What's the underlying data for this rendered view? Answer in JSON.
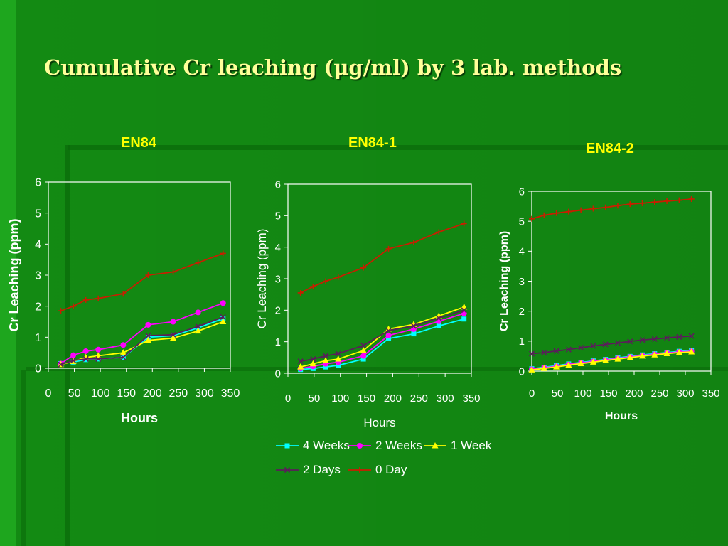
{
  "slide": {
    "title": "Cumulative Cr leaching (μg/ml) by 3 lab. methods"
  },
  "colors": {
    "background": "#138a13",
    "title": "#ffff99",
    "panel_title": "#ffff00",
    "axis_text": "#ffffff"
  },
  "chart_data": [
    {
      "type": "line",
      "title": "EN84",
      "xlabel": "Hours",
      "ylabel": "Cr Leaching (ppm)",
      "xlim": [
        0,
        350
      ],
      "ylim": [
        0,
        6
      ],
      "xticks": [
        "0",
        "50",
        "100",
        "150",
        "200",
        "250",
        "300",
        "350"
      ],
      "yticks": [
        "0",
        "1",
        "2",
        "3",
        "4",
        "5",
        "6"
      ],
      "grid": false,
      "series": [
        {
          "name": "4 Weeks",
          "color": "#00ffff",
          "marker": "square",
          "x": [
            24,
            48,
            72,
            96,
            144,
            192,
            240,
            288,
            336
          ],
          "y": [
            0.15,
            0.2,
            0.28,
            0.3,
            0.35,
            1.0,
            1.05,
            1.3,
            1.6
          ]
        },
        {
          "name": "2 Weeks",
          "color": "#ff00ff",
          "marker": "circle",
          "x": [
            24,
            48,
            72,
            96,
            144,
            192,
            240,
            288,
            336
          ],
          "y": [
            0.15,
            0.42,
            0.55,
            0.6,
            0.75,
            1.4,
            1.5,
            1.8,
            2.1
          ]
        },
        {
          "name": "1 Week",
          "color": "#ffff00",
          "marker": "triangle",
          "x": [
            24,
            48,
            72,
            96,
            144,
            192,
            240,
            288,
            336
          ],
          "y": [
            0.12,
            0.22,
            0.35,
            0.4,
            0.5,
            0.9,
            0.97,
            1.2,
            1.5
          ]
        },
        {
          "name": "2 Days",
          "color": "#5a1e5a",
          "marker": "x",
          "x": [
            24,
            48,
            72,
            96,
            144,
            192,
            240,
            288,
            336
          ],
          "y": [
            0.12,
            0.25,
            0.3,
            0.3,
            0.35,
            1.05,
            1.08,
            1.35,
            1.65
          ]
        },
        {
          "name": "0 Day",
          "color": "#c81e00",
          "marker": "plus",
          "x": [
            24,
            48,
            72,
            96,
            144,
            192,
            240,
            288,
            336
          ],
          "y": [
            1.85,
            2.0,
            2.2,
            2.25,
            2.4,
            3.0,
            3.1,
            3.4,
            3.7
          ]
        }
      ]
    },
    {
      "type": "line",
      "title": "EN84-1",
      "xlabel": "Hours",
      "ylabel": "Cr Leaching (ppm)",
      "xlim": [
        0,
        350
      ],
      "ylim": [
        0,
        6
      ],
      "xticks": [
        "0",
        "50",
        "100",
        "150",
        "200",
        "250",
        "300",
        "350"
      ],
      "yticks": [
        "0",
        "1",
        "2",
        "3",
        "4",
        "5",
        "6"
      ],
      "grid": false,
      "series": [
        {
          "name": "4 Weeks",
          "color": "#00ffff",
          "marker": "square",
          "x": [
            24,
            48,
            72,
            96,
            144,
            192,
            240,
            288,
            336
          ],
          "y": [
            0.12,
            0.15,
            0.2,
            0.25,
            0.45,
            1.1,
            1.25,
            1.5,
            1.72
          ]
        },
        {
          "name": "2 Weeks",
          "color": "#ff00ff",
          "marker": "circle",
          "x": [
            24,
            48,
            72,
            96,
            144,
            192,
            240,
            288,
            336
          ],
          "y": [
            0.15,
            0.22,
            0.3,
            0.35,
            0.55,
            1.2,
            1.4,
            1.65,
            1.9
          ]
        },
        {
          "name": "1 Week",
          "color": "#ffff00",
          "marker": "triangle",
          "x": [
            24,
            48,
            72,
            96,
            144,
            192,
            240,
            288,
            336
          ],
          "y": [
            0.2,
            0.3,
            0.4,
            0.45,
            0.72,
            1.4,
            1.55,
            1.82,
            2.1
          ]
        },
        {
          "name": "2 Days",
          "color": "#5a1e5a",
          "marker": "x",
          "x": [
            24,
            48,
            72,
            96,
            144,
            192,
            240,
            288,
            336
          ],
          "y": [
            0.38,
            0.45,
            0.55,
            0.62,
            0.88,
            1.35,
            1.5,
            1.75,
            2.0
          ]
        },
        {
          "name": "0 Day",
          "color": "#c81e00",
          "marker": "plus",
          "x": [
            24,
            48,
            72,
            96,
            144,
            192,
            240,
            288,
            336
          ],
          "y": [
            2.55,
            2.75,
            2.92,
            3.05,
            3.35,
            3.95,
            4.15,
            4.48,
            4.75
          ]
        }
      ]
    },
    {
      "type": "line",
      "title": "EN84-2",
      "xlabel": "Hours",
      "ylabel": "Cr Leaching (ppm)",
      "xlim": [
        0,
        350
      ],
      "ylim": [
        0,
        6
      ],
      "xticks": [
        "0",
        "50",
        "100",
        "150",
        "200",
        "250",
        "300",
        "350"
      ],
      "yticks": [
        "0",
        "1",
        "2",
        "3",
        "4",
        "5",
        "6"
      ],
      "grid": false,
      "series": [
        {
          "name": "4 Weeks",
          "color": "#00ffff",
          "marker": "square",
          "x": [
            0,
            24,
            48,
            72,
            96,
            120,
            144,
            168,
            192,
            216,
            240,
            264,
            288,
            312
          ],
          "y": [
            0.08,
            0.13,
            0.18,
            0.24,
            0.29,
            0.34,
            0.39,
            0.44,
            0.49,
            0.54,
            0.58,
            0.62,
            0.66,
            0.68
          ]
        },
        {
          "name": "2 Weeks",
          "color": "#ff00ff",
          "marker": "circle",
          "x": [
            0,
            24,
            48,
            72,
            96,
            120,
            144,
            168,
            192,
            216,
            240,
            264,
            288,
            312
          ],
          "y": [
            0.06,
            0.11,
            0.16,
            0.22,
            0.27,
            0.32,
            0.37,
            0.42,
            0.47,
            0.52,
            0.56,
            0.6,
            0.64,
            0.66
          ]
        },
        {
          "name": "1 Week",
          "color": "#ffff00",
          "marker": "triangle",
          "x": [
            0,
            24,
            48,
            72,
            96,
            120,
            144,
            168,
            192,
            216,
            240,
            264,
            288,
            312
          ],
          "y": [
            0.04,
            0.09,
            0.14,
            0.2,
            0.25,
            0.3,
            0.35,
            0.4,
            0.45,
            0.5,
            0.54,
            0.58,
            0.62,
            0.64
          ]
        },
        {
          "name": "2 Days",
          "color": "#5a1e5a",
          "marker": "x",
          "x": [
            0,
            24,
            48,
            72,
            96,
            120,
            144,
            168,
            192,
            216,
            240,
            264,
            288,
            312
          ],
          "y": [
            0.58,
            0.62,
            0.67,
            0.72,
            0.78,
            0.84,
            0.89,
            0.94,
            0.99,
            1.04,
            1.07,
            1.11,
            1.14,
            1.17
          ]
        },
        {
          "name": "0 Day",
          "color": "#c81e00",
          "marker": "plus",
          "x": [
            0,
            24,
            48,
            72,
            96,
            120,
            144,
            168,
            192,
            216,
            240,
            264,
            288,
            312
          ],
          "y": [
            5.08,
            5.2,
            5.27,
            5.32,
            5.37,
            5.42,
            5.46,
            5.52,
            5.57,
            5.6,
            5.64,
            5.67,
            5.7,
            5.74
          ]
        }
      ]
    }
  ],
  "legend": {
    "items": [
      {
        "label": "4 Weeks",
        "color": "#00ffff",
        "marker": "square"
      },
      {
        "label": "2 Weeks",
        "color": "#ff00ff",
        "marker": "circle"
      },
      {
        "label": "1 Week",
        "color": "#ffff00",
        "marker": "triangle"
      },
      {
        "label": "2 Days",
        "color": "#5a1e5a",
        "marker": "x"
      },
      {
        "label": "0 Day",
        "color": "#c81e00",
        "marker": "plus"
      }
    ]
  }
}
